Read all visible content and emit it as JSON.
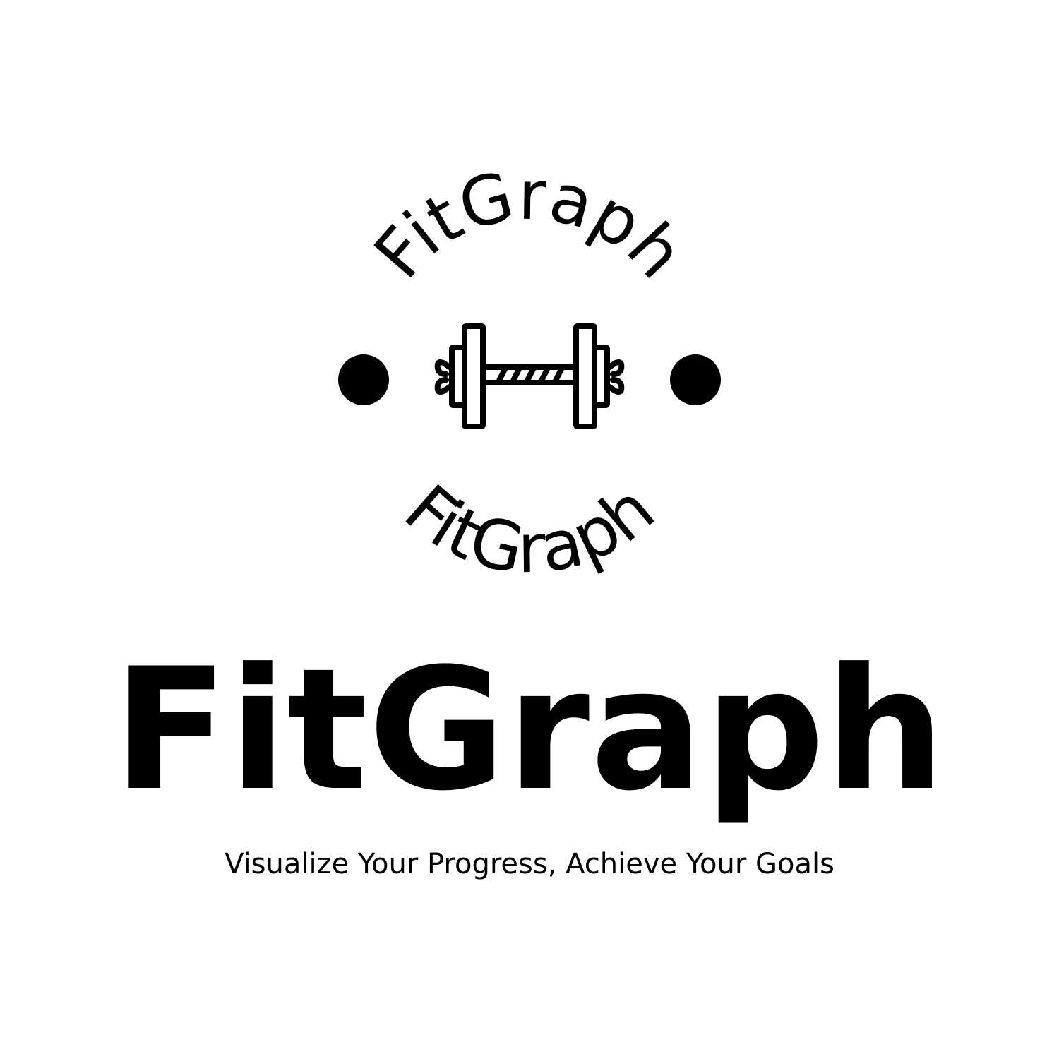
{
  "brand": {
    "ring_top_text": "FitGraph",
    "ring_bottom_text": "FitGraph",
    "name": "FitGraph",
    "tagline": "Visualize Your Progress, Achieve Your Goals"
  },
  "icons": {
    "center": "barbell-icon",
    "separators": [
      "dot-icon",
      "dot-icon"
    ]
  },
  "colors": {
    "background": "#ffffff",
    "foreground": "#000000"
  }
}
